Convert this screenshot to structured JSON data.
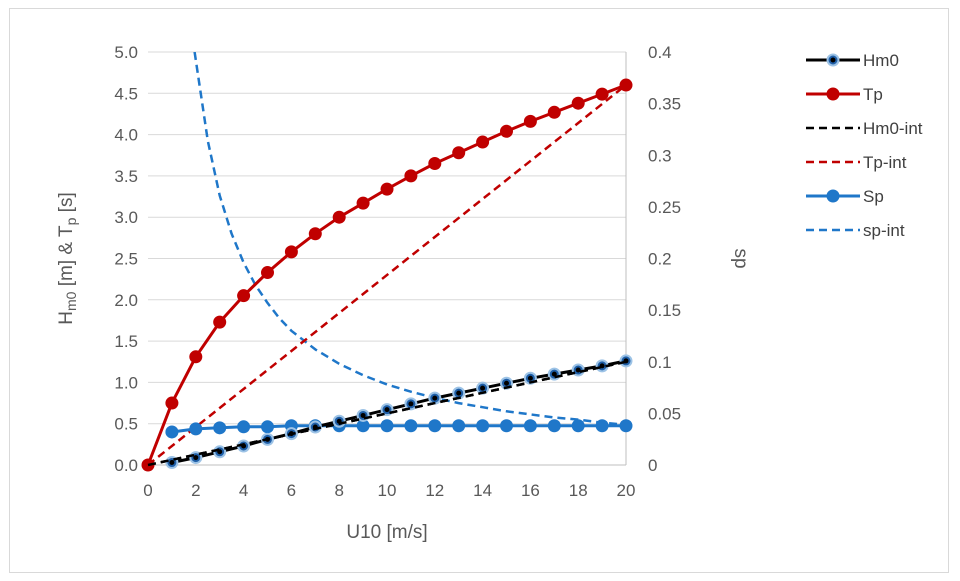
{
  "chart_data": {
    "type": "line",
    "xlabel": "U10 [m/s]",
    "ylabel_left": {
      "main": "H",
      "sub1": "m0",
      "mid": " [m] & T",
      "sub2": "p",
      "end": " [s]"
    },
    "ylabel_right": "sp",
    "xlim": [
      0,
      20
    ],
    "ylim_left": [
      0,
      5.0
    ],
    "ylim_right": [
      0,
      0.4
    ],
    "x_ticks": [
      "0",
      "2",
      "4",
      "6",
      "8",
      "10",
      "12",
      "14",
      "16",
      "18",
      "20"
    ],
    "y_left_ticks": [
      "0.0",
      "0.5",
      "1.0",
      "1.5",
      "2.0",
      "2.5",
      "3.0",
      "3.5",
      "4.0",
      "4.5",
      "5.0"
    ],
    "y_right_ticks": [
      "0",
      "0.05",
      "0.1",
      "0.15",
      "0.2",
      "0.25",
      "0.3",
      "0.35",
      "0.4"
    ],
    "grid": "horizontal",
    "legend_position": "right",
    "series": [
      {
        "name": "Hm0",
        "axis": "left",
        "style": "solid-marker",
        "color": "#000000",
        "marker_fill": "#1f5fa8",
        "marker_edge": "#9dc3e6",
        "x": [
          1,
          2,
          3,
          4,
          5,
          6,
          7,
          8,
          9,
          10,
          11,
          12,
          13,
          14,
          15,
          16,
          17,
          18,
          19,
          20
        ],
        "y": [
          0.03,
          0.09,
          0.16,
          0.23,
          0.31,
          0.38,
          0.46,
          0.53,
          0.6,
          0.67,
          0.74,
          0.81,
          0.87,
          0.93,
          0.99,
          1.05,
          1.1,
          1.15,
          1.2,
          1.26
        ]
      },
      {
        "name": "Tp",
        "axis": "left",
        "style": "solid-marker",
        "color": "#c00000",
        "marker_fill": "#c00000",
        "x": [
          0,
          1,
          2,
          3,
          4,
          5,
          6,
          7,
          8,
          9,
          10,
          11,
          12,
          13,
          14,
          15,
          16,
          17,
          18,
          19,
          20
        ],
        "y": [
          0.0,
          0.75,
          1.31,
          1.73,
          2.05,
          2.33,
          2.58,
          2.8,
          3.0,
          3.17,
          3.34,
          3.5,
          3.65,
          3.78,
          3.91,
          4.04,
          4.16,
          4.27,
          4.38,
          4.49,
          4.6
        ]
      },
      {
        "name": "Hm0-int",
        "axis": "left",
        "style": "dashed",
        "color": "#000000",
        "x": [
          0,
          20
        ],
        "y": [
          0.0,
          1.25
        ]
      },
      {
        "name": "Tp-int",
        "axis": "left",
        "style": "dashed",
        "color": "#c00000",
        "x": [
          0,
          20
        ],
        "y": [
          0.0,
          4.6
        ]
      },
      {
        "name": "Sp",
        "axis": "right",
        "style": "solid-marker",
        "color": "#1f77c9",
        "marker_fill": "#1f77c9",
        "x": [
          1,
          2,
          3,
          4,
          5,
          6,
          7,
          8,
          9,
          10,
          11,
          12,
          13,
          14,
          15,
          16,
          17,
          18,
          19,
          20
        ],
        "y": [
          0.032,
          0.035,
          0.036,
          0.037,
          0.037,
          0.038,
          0.038,
          0.038,
          0.038,
          0.038,
          0.038,
          0.038,
          0.038,
          0.038,
          0.038,
          0.038,
          0.038,
          0.038,
          0.038,
          0.038
        ]
      },
      {
        "name": "sp-int",
        "axis": "right",
        "style": "dashed",
        "color": "#1f77c9",
        "x": [
          1.95,
          2.5,
          3,
          3.5,
          4,
          4.5,
          5,
          5.5,
          6,
          7,
          8,
          9,
          10,
          11,
          12,
          13,
          14,
          15,
          16,
          17,
          18,
          19,
          20
        ],
        "y": [
          0.4,
          0.314,
          0.261,
          0.224,
          0.196,
          0.174,
          0.157,
          0.142,
          0.13,
          0.112,
          0.098,
          0.087,
          0.078,
          0.071,
          0.065,
          0.06,
          0.056,
          0.052,
          0.049,
          0.046,
          0.044,
          0.041,
          0.039
        ]
      }
    ]
  }
}
